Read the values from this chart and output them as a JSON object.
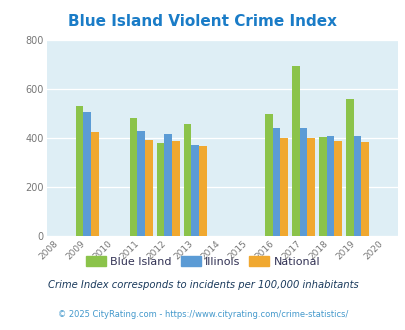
{
  "title": "Blue Island Violent Crime Index",
  "title_color": "#1a7cc7",
  "years": [
    2009,
    2011,
    2012,
    2013,
    2016,
    2017,
    2018,
    2019
  ],
  "blue_island": [
    530,
    480,
    378,
    458,
    498,
    693,
    402,
    557
  ],
  "illinois": [
    504,
    428,
    415,
    372,
    438,
    438,
    407,
    407
  ],
  "national": [
    425,
    390,
    388,
    368,
    400,
    400,
    385,
    382
  ],
  "colors": {
    "blue_island": "#8bc34a",
    "illinois": "#5b9bd5",
    "national": "#f0a830"
  },
  "xlim": [
    2007.5,
    2020.5
  ],
  "ylim": [
    0,
    800
  ],
  "yticks": [
    0,
    200,
    400,
    600,
    800
  ],
  "xticks": [
    2008,
    2009,
    2010,
    2011,
    2012,
    2013,
    2014,
    2015,
    2016,
    2017,
    2018,
    2019,
    2020
  ],
  "bg_color": "#deeef5",
  "fig_bg": "#ffffff",
  "footnote1": "Crime Index corresponds to incidents per 100,000 inhabitants",
  "footnote2": "© 2025 CityRating.com - https://www.cityrating.com/crime-statistics/",
  "footnote1_color": "#1a3a5c",
  "footnote2_color": "#4499cc",
  "bar_width": 0.28,
  "legend_labels": [
    "Blue Island",
    "Illinois",
    "National"
  ]
}
